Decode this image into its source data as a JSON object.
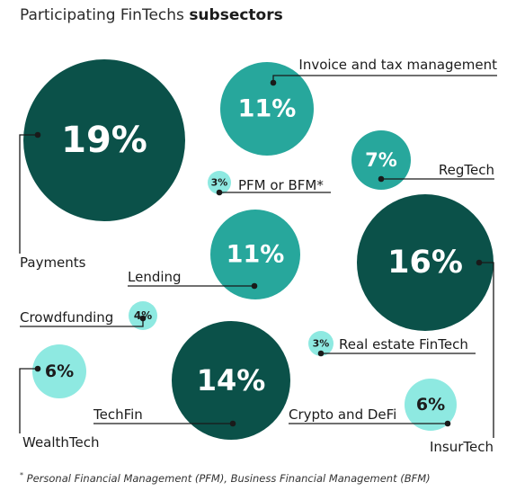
{
  "title": {
    "prefix": "Participating FinTechs",
    "bold": "subsectors"
  },
  "footnote": {
    "marker": "*",
    "text": " Personal Financial Management (PFM), Business Financial Management (BFM)"
  },
  "colors": {
    "dark": "#0b5149",
    "mid": "#27a79c",
    "light": "#8ee9e1",
    "line": "#1a1a1a"
  },
  "chart_data": {
    "type": "bubble",
    "unit": "%",
    "items": [
      {
        "name": "Payments",
        "value": 19,
        "label": "19%",
        "shade": "dark"
      },
      {
        "name": "Invoice and tax management",
        "value": 11,
        "label": "11%",
        "shade": "mid"
      },
      {
        "name": "RegTech",
        "value": 7,
        "label": "7%",
        "shade": "mid"
      },
      {
        "name": "PFM or BFM*",
        "value": 3,
        "label": "3%",
        "shade": "light"
      },
      {
        "name": "Lending",
        "value": 11,
        "label": "11%",
        "shade": "mid"
      },
      {
        "name": "InsurTech",
        "value": 16,
        "label": "16%",
        "shade": "dark"
      },
      {
        "name": "Crowdfunding",
        "value": 4,
        "label": "4%",
        "shade": "light"
      },
      {
        "name": "Real estate FinTech",
        "value": 3,
        "label": "3%",
        "shade": "light"
      },
      {
        "name": "WealthTech",
        "value": 6,
        "label": "6%",
        "shade": "light"
      },
      {
        "name": "TechFin",
        "value": 14,
        "label": "14%",
        "shade": "dark"
      },
      {
        "name": "Crypto and DeFi",
        "value": 6,
        "label": "6%",
        "shade": "light"
      }
    ]
  }
}
